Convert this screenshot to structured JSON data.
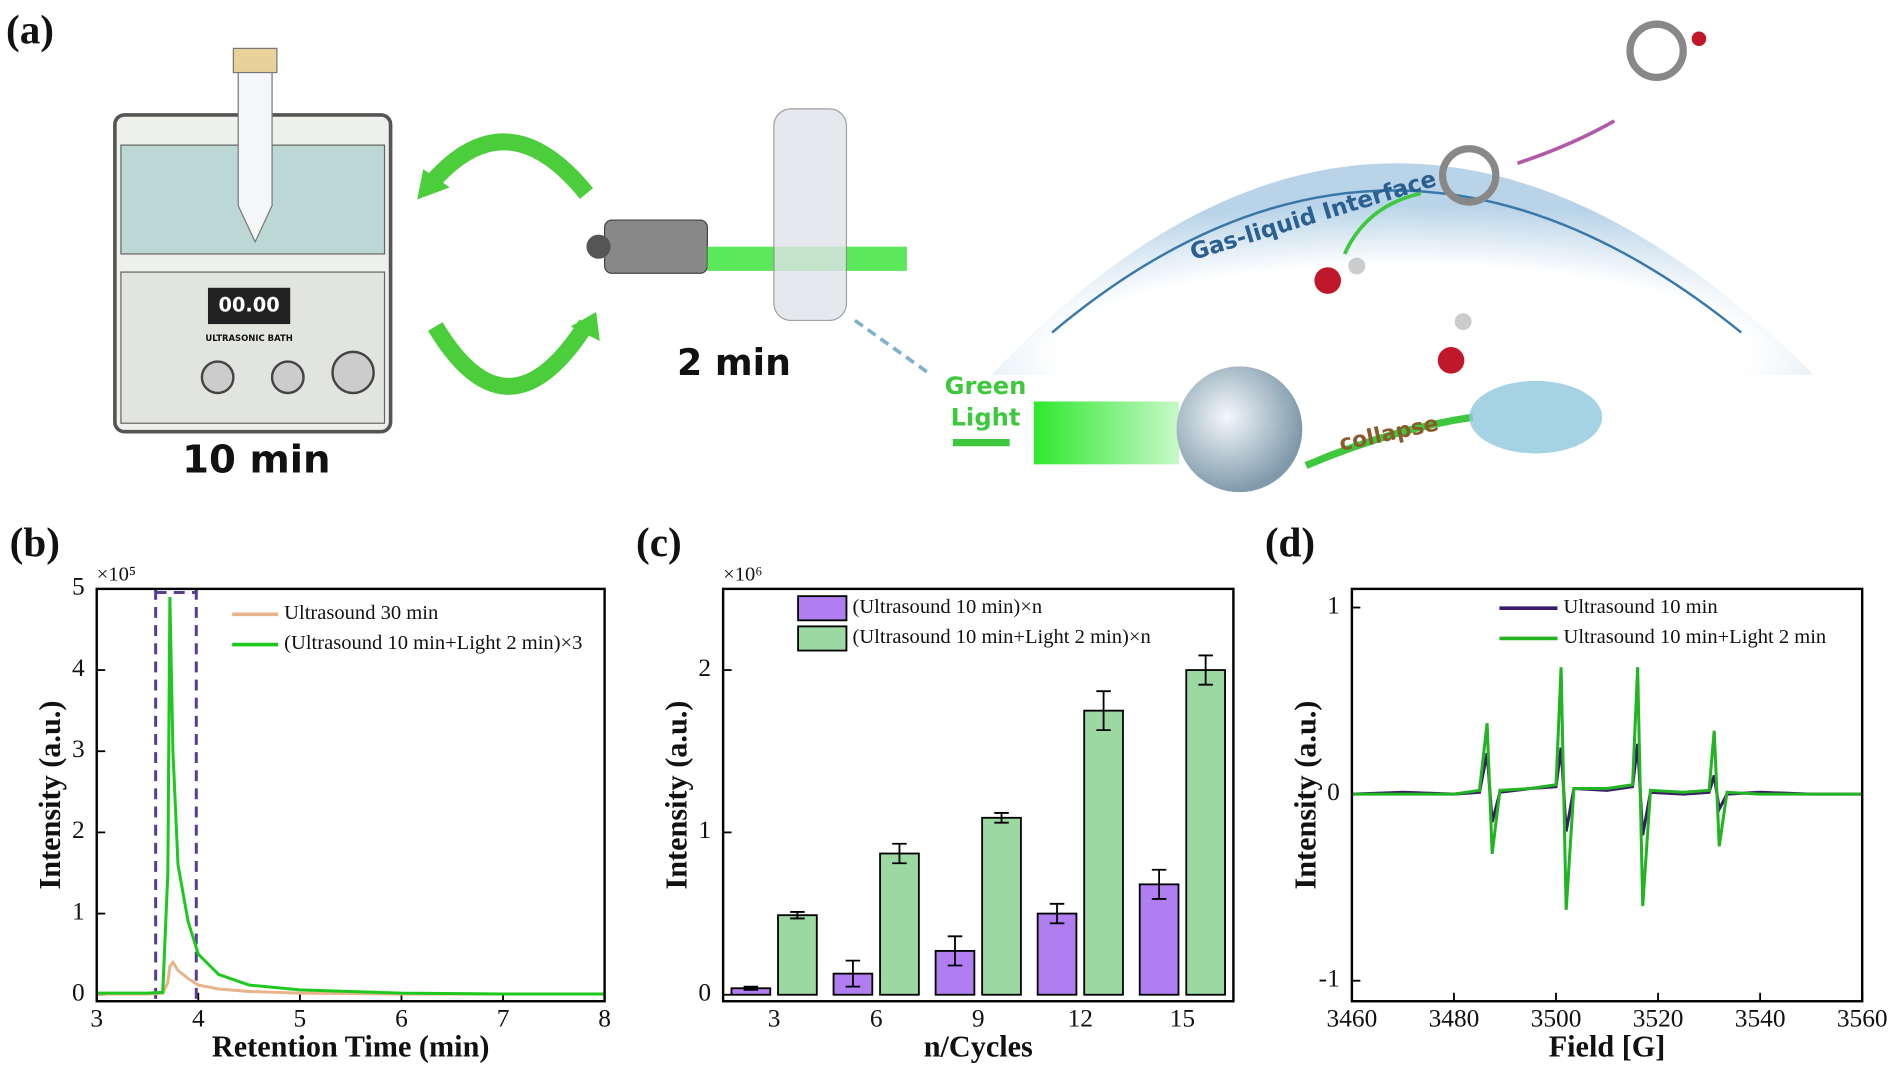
{
  "diagram": {
    "panel": "(a)",
    "bath_time": "10 min",
    "light_time": "2 min",
    "light_label": [
      "Green",
      "Light"
    ],
    "interface": "Gas-liquid Interface",
    "collapse": "collapse",
    "display": "00.00",
    "bath_name": "ULTRASONIC BATH"
  },
  "chart_data": [
    {
      "type": "line",
      "panel": "(b)",
      "xlabel": "Retention Time (min)",
      "ylabel": "Intensity (a.u.)",
      "y_multiplier": "×10⁵",
      "x": [
        3,
        3.5,
        3.65,
        3.7,
        3.72,
        3.75,
        3.8,
        3.9,
        4.0,
        4.2,
        4.5,
        5,
        6,
        7,
        8
      ],
      "series": [
        {
          "name": "Ultrasound 30 min",
          "color": "#e8b48c",
          "values": [
            0.01,
            0.01,
            0.02,
            0.15,
            0.35,
            0.4,
            0.3,
            0.2,
            0.12,
            0.07,
            0.04,
            0.02,
            0.01,
            0.01,
            0.01
          ]
        },
        {
          "name": "(Ultrasound 10 min+Light 2 min)×3",
          "color": "#1ec81e",
          "values": [
            0.02,
            0.02,
            0.03,
            1.5,
            4.9,
            3.0,
            1.6,
            0.9,
            0.5,
            0.25,
            0.12,
            0.06,
            0.02,
            0.01,
            0.01
          ]
        }
      ],
      "highlight_x": [
        3.58,
        3.98
      ],
      "highlight_color": "#5b3d8f",
      "xlim": [
        3,
        8
      ],
      "xticks": [
        3,
        4,
        5,
        6,
        7,
        8
      ],
      "ylim": [
        -0.08,
        5
      ],
      "yticks": [
        0,
        1,
        2,
        3,
        4,
        5
      ]
    },
    {
      "type": "bar",
      "panel": "(c)",
      "xlabel": "n/Cycles",
      "ylabel": "Intensity (a.u.)",
      "y_multiplier": "×10⁶",
      "categories": [
        "3",
        "6",
        "9",
        "12",
        "15"
      ],
      "series": [
        {
          "name": "(Ultrasound 10 min)×n",
          "color": "#b07ef0",
          "values": [
            0.04,
            0.13,
            0.27,
            0.5,
            0.68
          ],
          "errors": [
            0.01,
            0.08,
            0.09,
            0.06,
            0.09
          ]
        },
        {
          "name": "(Ultrasound 10 min+Light 2 min)×n",
          "color": "#9bd8a2",
          "values": [
            0.49,
            0.87,
            1.09,
            1.75,
            2.0
          ],
          "errors": [
            0.02,
            0.06,
            0.03,
            0.12,
            0.09
          ]
        }
      ],
      "ylim": [
        -0.04,
        2.5
      ],
      "yticks": [
        0,
        1,
        2
      ]
    },
    {
      "type": "line",
      "panel": "(d)",
      "xlabel": "Field [G]",
      "ylabel": "Intensity (a.u.)",
      "x": [
        3460,
        3470,
        3480,
        3485,
        3486.5,
        3487.5,
        3489,
        3495,
        3500,
        3501,
        3502,
        3503.5,
        3510,
        3515,
        3516,
        3517,
        3518.5,
        3525,
        3530,
        3531,
        3532,
        3533.5,
        3540,
        3550,
        3560
      ],
      "series": [
        {
          "name": "Ultrasound 10 min",
          "color": "#3b1a66",
          "values": [
            0,
            0.01,
            0,
            0.01,
            0.22,
            -0.15,
            0.01,
            0.03,
            0.04,
            0.25,
            -0.2,
            0.03,
            0.02,
            0.04,
            0.27,
            -0.22,
            0.01,
            0,
            0.01,
            0.1,
            -0.08,
            0,
            0.01,
            0,
            0
          ]
        },
        {
          "name": "Ultrasound 10 min+Light 2 min",
          "color": "#22b422",
          "values": [
            0,
            0,
            0,
            0.02,
            0.38,
            -0.32,
            0.02,
            0.03,
            0.05,
            0.68,
            -0.62,
            0.03,
            0.03,
            0.05,
            0.68,
            -0.6,
            0.02,
            0.01,
            0.02,
            0.34,
            -0.28,
            0.01,
            0,
            0,
            0
          ]
        }
      ],
      "xlim": [
        3460,
        3560
      ],
      "xticks": [
        3460,
        3480,
        3500,
        3520,
        3540,
        3560
      ],
      "ylim": [
        -1.11,
        1.1
      ],
      "yticks": [
        -1,
        0,
        1
      ]
    }
  ]
}
